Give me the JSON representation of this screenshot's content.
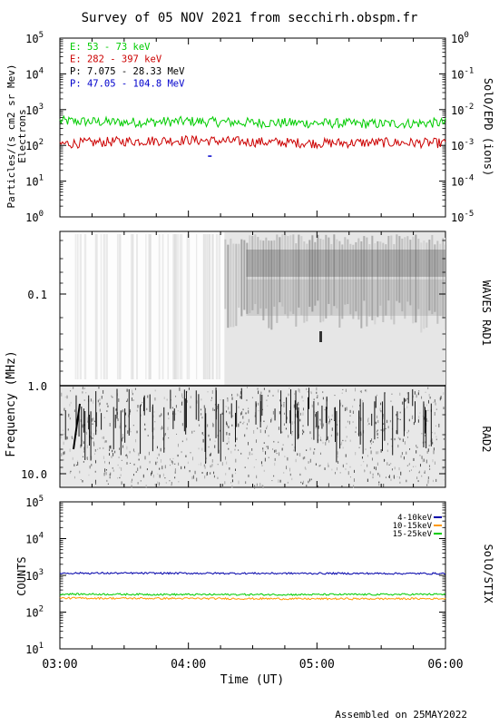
{
  "title": "Survey of 05 NOV 2021 from secchirh.obspm.fr",
  "footer": "Assembled on 25MAY2022",
  "chart_data": [
    {
      "type": "line",
      "panel": "SolO/EPD",
      "ylabel_left": "Particles/(s cm2 sr Mev)",
      "ylabel_left2": "Electrons",
      "ylabel_right": "SolO/EPD (ions)",
      "yscale": "log",
      "ylim": [
        1,
        100000
      ],
      "yticks": [
        "10^0",
        "10^1",
        "10^2",
        "10^3",
        "10^4",
        "10^5"
      ],
      "ylim_right": [
        1e-05,
        1
      ],
      "yticks_right": [
        "10^-5",
        "10^-4",
        "10^-3",
        "10^-2",
        "10^-1",
        "10^0"
      ],
      "xlim": [
        "03:00",
        "06:00"
      ],
      "legend_position": "top-left",
      "series": [
        {
          "name": "E: 53 - 73 keV",
          "color": "#00cc00",
          "mean": 450,
          "x": [
            "03:00",
            "03:30",
            "04:00",
            "04:30",
            "05:00",
            "05:30",
            "06:00"
          ],
          "values": [
            480,
            440,
            470,
            430,
            420,
            400,
            430
          ]
        },
        {
          "name": "E: 282 - 397 keV",
          "color": "#cc0000",
          "mean": 120,
          "x": [
            "03:00",
            "03:30",
            "04:00",
            "04:30",
            "05:00",
            "05:30",
            "06:00"
          ],
          "values": [
            110,
            130,
            140,
            125,
            115,
            120,
            115
          ]
        },
        {
          "name": "P: 7.075 - 28.33 MeV",
          "color": "#000000",
          "x": [],
          "values": []
        },
        {
          "name": "P: 47.05 - 104.8 MeV",
          "color": "#0000cc",
          "x": [
            "04:10"
          ],
          "values": [
            50
          ]
        }
      ]
    },
    {
      "type": "heatmap",
      "panel": "WAVES RAD1",
      "ylabel_right": "WAVES RAD1",
      "ylabel_left": "Frequency (MHz)",
      "yscale": "log",
      "ylim": [
        1.0,
        0.02
      ],
      "yticks": [
        "0.1",
        "1.0"
      ],
      "xlim": [
        "03:00",
        "06:00"
      ],
      "note": "faint background until ~04:17, then enhanced emission at 0.03-0.15 MHz to 06:00"
    },
    {
      "type": "heatmap",
      "panel": "RAD2",
      "ylabel_right": "RAD2",
      "yscale": "log",
      "ylim": [
        1.0,
        14.0
      ],
      "yticks": [
        "10.0"
      ],
      "xlim": [
        "03:00",
        "06:00"
      ],
      "note": "dense noise with many short vertical bursts"
    },
    {
      "type": "line",
      "panel": "SolO/STIX",
      "ylabel_left": "COUNTS",
      "ylabel_right": "SolO/STIX",
      "yscale": "log",
      "ylim": [
        10,
        100000
      ],
      "yticks": [
        "10^1",
        "10^2",
        "10^3",
        "10^4",
        "10^5"
      ],
      "xlim": [
        "03:00",
        "06:00"
      ],
      "xlabel": "Time (UT)",
      "xticks": [
        "03:00",
        "04:00",
        "05:00",
        "06:00"
      ],
      "legend_position": "top-right",
      "series": [
        {
          "name": "4-10keV",
          "color": "#0000aa",
          "x": [
            "03:00",
            "04:00",
            "05:00",
            "06:00"
          ],
          "values": [
            1150,
            1140,
            1130,
            1120
          ]
        },
        {
          "name": "10-15keV",
          "color": "#ff9900",
          "x": [
            "03:00",
            "04:00",
            "05:00",
            "06:00"
          ],
          "values": [
            240,
            235,
            230,
            232
          ]
        },
        {
          "name": "15-25keV",
          "color": "#00cc00",
          "x": [
            "03:00",
            "04:00",
            "05:00",
            "06:00"
          ],
          "values": [
            310,
            300,
            300,
            305
          ]
        }
      ]
    }
  ]
}
